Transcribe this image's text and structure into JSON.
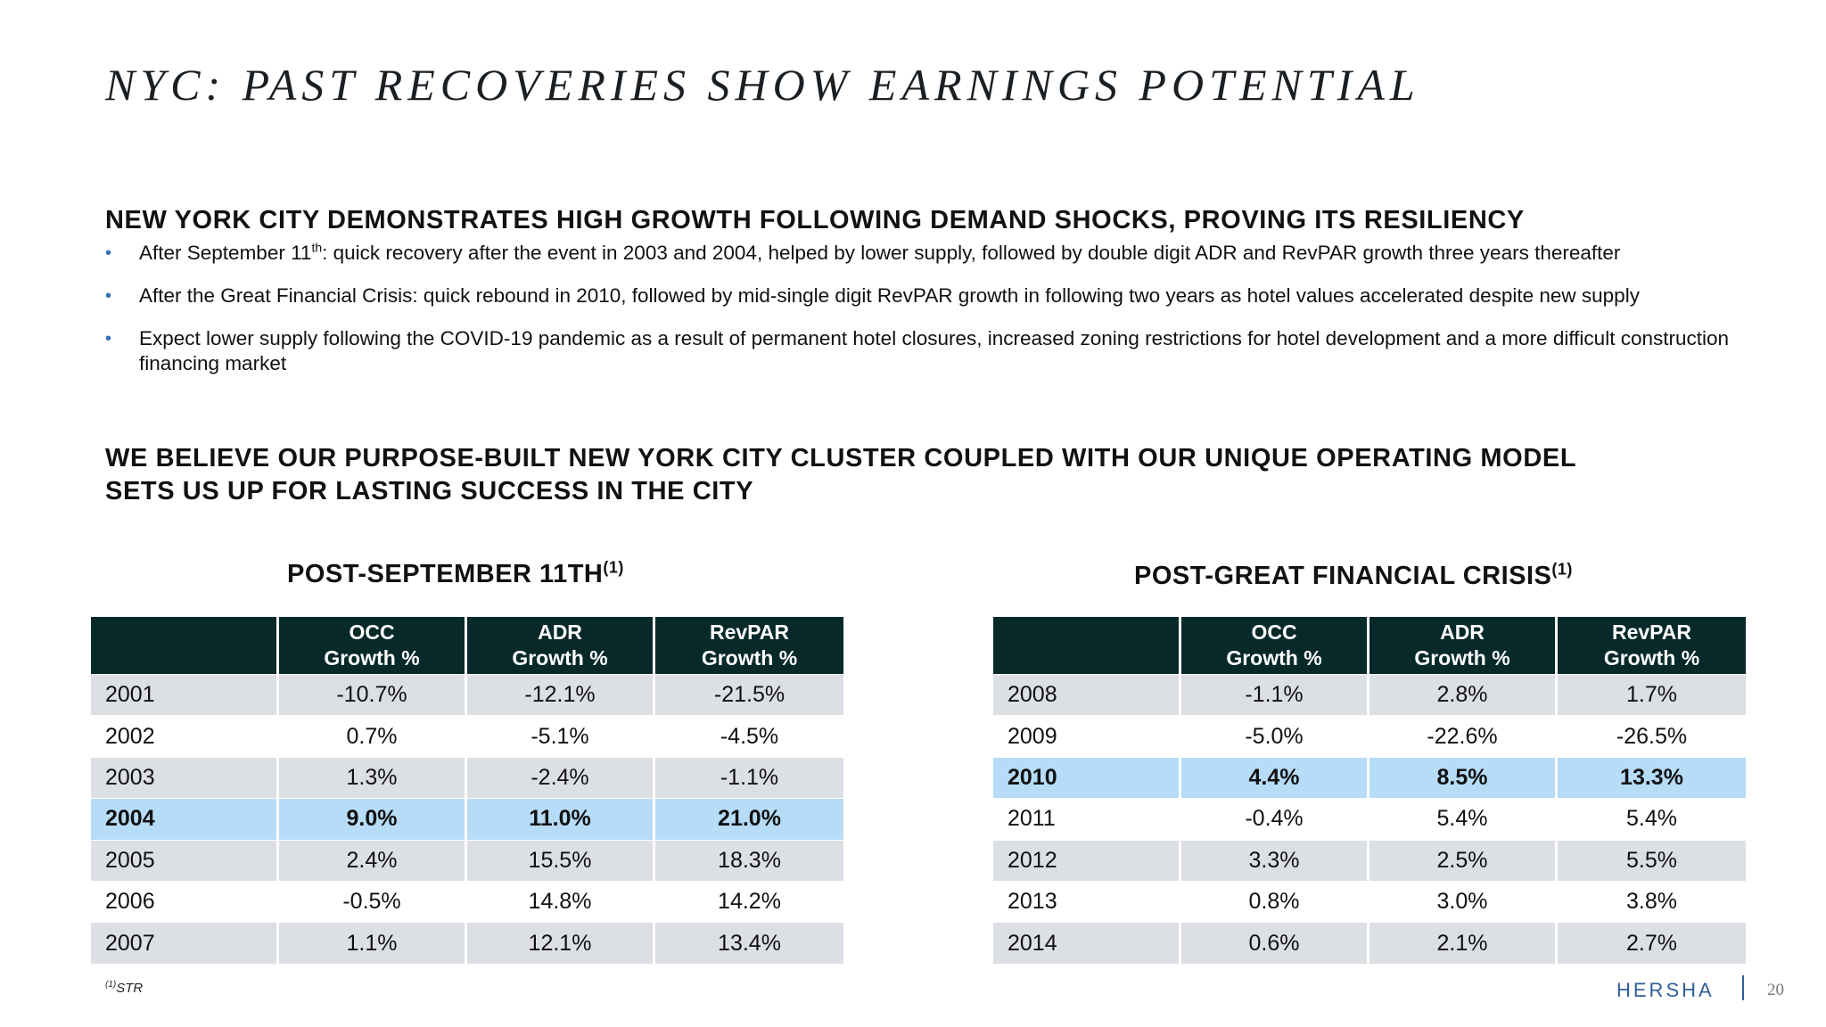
{
  "title": "NYC: PAST RECOVERIES SHOW EARNINGS POTENTIAL",
  "section1": {
    "heading": "NEW YORK CITY DEMONSTRATES HIGH GROWTH FOLLOWING DEMAND SHOCKS, PROVING ITS RESILIENCY",
    "bullet1": {
      "pre": "After September 11",
      "sup": "th",
      "post": ": quick recovery after the event in 2003 and 2004, helped by lower supply, followed by double digit ADR and RevPAR growth three years thereafter"
    },
    "bullet2": "After the Great Financial Crisis: quick rebound in 2010, followed by mid-single digit RevPAR growth in following two years as hotel values accelerated despite new supply",
    "bullet3": "Expect lower supply following the COVID-19 pandemic as a result of permanent hotel closures, increased zoning restrictions for hotel development and a more difficult construction financing market"
  },
  "section2": {
    "heading": "WE BELIEVE OUR PURPOSE-BUILT NEW YORK CITY CLUSTER COUPLED WITH OUR UNIQUE OPERATING MODEL SETS US UP FOR LASTING SUCCESS IN THE CITY"
  },
  "table1": {
    "title": "POST-SEPTEMBER 11TH",
    "title_sup": "(1)",
    "headers": [
      {
        "l1": "OCC",
        "l2": "Growth %"
      },
      {
        "l1": "ADR",
        "l2": "Growth %"
      },
      {
        "l1": "RevPAR",
        "l2": "Growth %"
      }
    ],
    "rows": [
      {
        "year": "2001",
        "occ": "-10.7%",
        "adr": "-12.1%",
        "revpar": "-21.5%"
      },
      {
        "year": "2002",
        "occ": "0.7%",
        "adr": "-5.1%",
        "revpar": "-4.5%"
      },
      {
        "year": "2003",
        "occ": "1.3%",
        "adr": "-2.4%",
        "revpar": "-1.1%"
      },
      {
        "year": "2004",
        "occ": "9.0%",
        "adr": "11.0%",
        "revpar": "21.0%"
      },
      {
        "year": "2005",
        "occ": "2.4%",
        "adr": "15.5%",
        "revpar": "18.3%"
      },
      {
        "year": "2006",
        "occ": "-0.5%",
        "adr": "14.8%",
        "revpar": "14.2%"
      },
      {
        "year": "2007",
        "occ": "1.1%",
        "adr": "12.1%",
        "revpar": "13.4%"
      }
    ]
  },
  "table2": {
    "title": "POST-GREAT FINANCIAL CRISIS",
    "title_sup": "(1)",
    "headers": [
      {
        "l1": "OCC",
        "l2": "Growth %"
      },
      {
        "l1": "ADR",
        "l2": "Growth %"
      },
      {
        "l1": "RevPAR",
        "l2": "Growth %"
      }
    ],
    "rows": [
      {
        "year": "2008",
        "occ": "-1.1%",
        "adr": "2.8%",
        "revpar": "1.7%"
      },
      {
        "year": "2009",
        "occ": "-5.0%",
        "adr": "-22.6%",
        "revpar": "-26.5%"
      },
      {
        "year": "2010",
        "occ": "4.4%",
        "adr": "8.5%",
        "revpar": "13.3%"
      },
      {
        "year": "2011",
        "occ": "-0.4%",
        "adr": "5.4%",
        "revpar": "5.4%"
      },
      {
        "year": "2012",
        "occ": "3.3%",
        "adr": "2.5%",
        "revpar": "5.5%"
      },
      {
        "year": "2013",
        "occ": "0.8%",
        "adr": "3.0%",
        "revpar": "3.8%"
      },
      {
        "year": "2014",
        "occ": "0.6%",
        "adr": "2.1%",
        "revpar": "2.7%"
      }
    ]
  },
  "footnote": {
    "sup": "(1)",
    "text": "STR"
  },
  "logo": "HERSHA",
  "page_number": "20",
  "colors": {
    "header_bg": "#08292a",
    "highlight_row": "#b6dcf8",
    "gray_row": "#dcdfe4",
    "accent_blue": "#2f5d9a"
  }
}
